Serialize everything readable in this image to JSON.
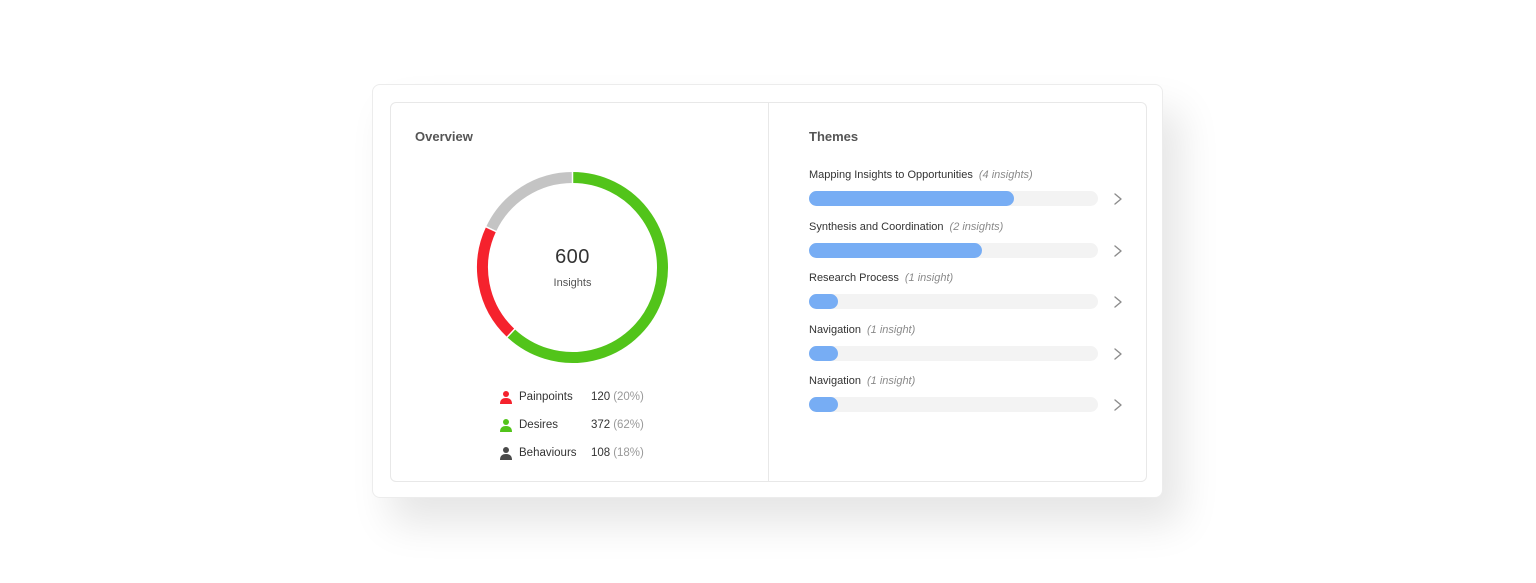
{
  "overview": {
    "title": "Overview",
    "total": "600",
    "total_caption": "Insights",
    "categories": [
      {
        "key": "painpoints",
        "label": "Painpoints",
        "value": "120",
        "pct": "(20%)",
        "color": "#f5222d",
        "icon": "person-icon"
      },
      {
        "key": "desires",
        "label": "Desires",
        "value": "372",
        "pct": "(62%)",
        "color": "#52c41a",
        "icon": "person-icon"
      },
      {
        "key": "behaviours",
        "label": "Behaviours",
        "value": "108",
        "pct": "(18%)",
        "color": "#4a4a4a",
        "icon": "person-icon"
      }
    ]
  },
  "chart_data": {
    "type": "pie",
    "categories": [
      "Desires",
      "Painpoints",
      "Behaviours"
    ],
    "values": [
      372,
      120,
      108
    ],
    "colors": [
      "#52c41a",
      "#f5222d",
      "#c4c4c4"
    ],
    "donut": true
  },
  "themes": {
    "title": "Themes",
    "items": [
      {
        "name": "Mapping Insights to Opportunities",
        "count": "(4 insights)",
        "fill": 0.71
      },
      {
        "name": "Synthesis and Coordination",
        "count": "(2 insights)",
        "fill": 0.6
      },
      {
        "name": "Research Process",
        "count": "(1 insight)",
        "fill": 0.1
      },
      {
        "name": "Navigation",
        "count": "(1 insight)",
        "fill": 0.1
      },
      {
        "name": "Navigation",
        "count": "(1 insight)",
        "fill": 0.1
      }
    ]
  }
}
